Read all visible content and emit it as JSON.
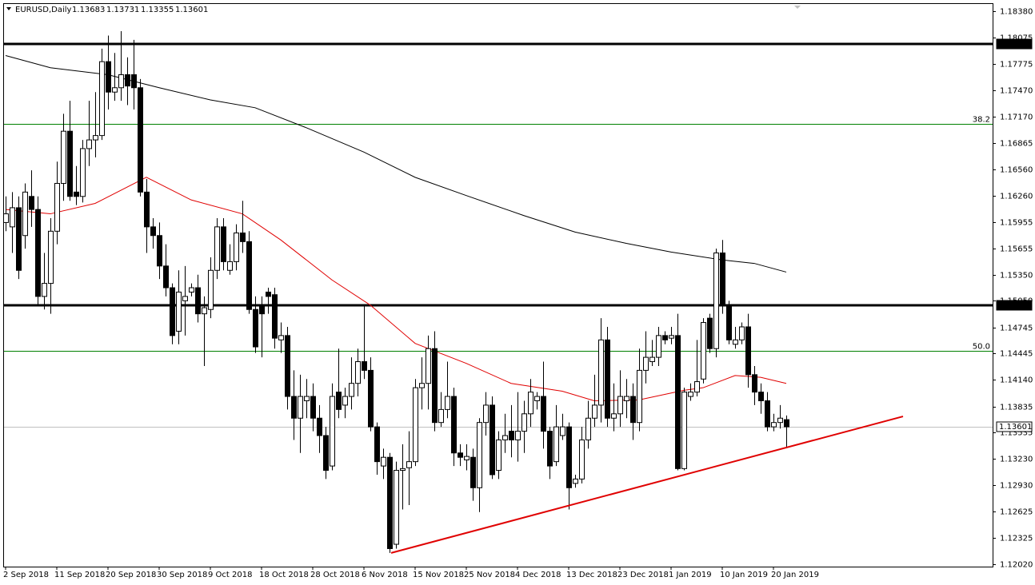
{
  "chart_data": {
    "type": "candlestick",
    "header": {
      "symbol": "EURUSD,Daily",
      "ohlc": [
        "1.13683",
        "1.13731",
        "1.13355",
        "1.13601"
      ]
    },
    "categories": [
      "2 Sep 2018",
      null,
      null,
      null,
      null,
      null,
      null,
      null,
      "11 Sep 2018",
      null,
      null,
      null,
      null,
      null,
      null,
      null,
      "20 Sep 2018",
      null,
      null,
      null,
      null,
      null,
      null,
      null,
      "30 Sep 2018",
      null,
      null,
      null,
      null,
      null,
      null,
      null,
      "9 Oct 2018",
      null,
      null,
      null,
      null,
      null,
      null,
      null,
      "18 Oct 2018",
      null,
      null,
      null,
      null,
      null,
      null,
      null,
      "28 Oct 2018",
      null,
      null,
      null,
      null,
      null,
      null,
      null,
      "6 Nov 2018",
      null,
      null,
      null,
      null,
      null,
      null,
      null,
      "15 Nov 2018",
      null,
      null,
      null,
      null,
      null,
      null,
      null,
      "25 Nov 2018",
      null,
      null,
      null,
      null,
      null,
      null,
      null,
      "4 Dec 2018",
      null,
      null,
      null,
      null,
      null,
      null,
      null,
      "13 Dec 2018",
      null,
      null,
      null,
      null,
      null,
      null,
      null,
      "23 Dec 2018",
      null,
      null,
      null,
      null,
      null,
      null,
      null,
      "1 Jan 2019",
      null,
      null,
      null,
      null,
      null,
      null,
      null,
      "10 Jan 2019",
      null,
      null,
      null,
      null,
      null,
      null,
      null,
      "20 Jan 2019",
      null,
      null
    ],
    "open": [
      1.1595,
      1.159,
      1.1612,
      1.158,
      1.1625,
      1.161,
      1.151,
      1.1525,
      1.1585,
      1.164,
      1.17,
      1.163,
      1.1625,
      1.168,
      1.169,
      1.1695,
      1.178,
      1.1745,
      1.175,
      1.1765,
      1.1765,
      1.175,
      1.163,
      1.159,
      1.158,
      1.1545,
      1.152,
      1.147,
      1.1505,
      1.1515,
      1.152,
      1.149,
      1.1495,
      1.154,
      1.159,
      1.154,
      1.155,
      1.1583,
      1.1573,
      1.1495,
      1.15,
      1.1515,
      1.1512,
      1.146,
      1.1465,
      1.1395,
      1.137,
      1.139,
      1.1395,
      1.137,
      1.135,
      1.1315,
      1.14,
      1.1385,
      1.1395,
      1.141,
      1.1435,
      1.1425,
      1.136,
      1.1315,
      1.1325,
      1.1225,
      1.131,
      1.1313,
      1.132,
      1.1405,
      1.141,
      1.145,
      1.1365,
      1.138,
      1.1395,
      1.133,
      1.1322,
      1.1325,
      1.129,
      1.1365,
      1.1385,
      1.131,
      1.1345,
      1.1355,
      1.1345,
      1.1355,
      1.1375,
      1.139,
      1.1395,
      1.1355,
      1.132,
      1.135,
      1.136,
      1.1295,
      1.13,
      1.1345,
      1.137,
      1.1385,
      1.146,
      1.137,
      1.1375,
      1.139,
      1.1395,
      1.1365,
      1.1425,
      1.1435,
      1.144,
      1.1465,
      1.1462,
      1.1465,
      1.1312,
      1.1395,
      1.14,
      1.1415,
      1.1485,
      1.145,
      1.156,
      1.15,
      1.1455,
      1.146,
      1.1475,
      1.142,
      1.14,
      1.139,
      1.136,
      1.1365,
      1.13683
    ],
    "high": [
      1.1625,
      1.163,
      1.1625,
      1.164,
      1.1655,
      1.1625,
      1.156,
      1.16,
      1.1665,
      1.172,
      1.1735,
      1.166,
      1.169,
      1.1735,
      1.1745,
      1.1795,
      1.181,
      1.179,
      1.1815,
      1.1785,
      1.1805,
      1.176,
      1.1645,
      1.16,
      1.1595,
      1.157,
      1.1525,
      1.154,
      1.1545,
      1.1525,
      1.1535,
      1.151,
      1.1555,
      1.16,
      1.16,
      1.157,
      1.1593,
      1.162,
      1.1585,
      1.151,
      1.151,
      1.152,
      1.152,
      1.148,
      1.1475,
      1.1425,
      1.142,
      1.1415,
      1.141,
      1.1385,
      1.136,
      1.141,
      1.145,
      1.1405,
      1.144,
      1.145,
      1.15,
      1.144,
      1.1365,
      1.1335,
      1.133,
      1.132,
      1.134,
      1.1355,
      1.1415,
      1.144,
      1.1465,
      1.147,
      1.14,
      1.1435,
      1.1405,
      1.134,
      1.134,
      1.1335,
      1.137,
      1.14,
      1.1395,
      1.1355,
      1.1375,
      1.1385,
      1.14,
      1.139,
      1.1415,
      1.14,
      1.1435,
      1.136,
      1.1385,
      1.1375,
      1.1365,
      1.1305,
      1.136,
      1.139,
      1.142,
      1.1485,
      1.1475,
      1.141,
      1.1425,
      1.1415,
      1.141,
      1.145,
      1.147,
      1.146,
      1.1475,
      1.147,
      1.1475,
      1.149,
      1.1405,
      1.141,
      1.146,
      1.1485,
      1.149,
      1.1565,
      1.1575,
      1.1505,
      1.1475,
      1.148,
      1.149,
      1.143,
      1.141,
      1.14,
      1.1375,
      1.1385,
      1.13731
    ],
    "low": [
      1.1585,
      1.156,
      1.153,
      1.1565,
      1.159,
      1.15,
      1.1495,
      1.149,
      1.157,
      1.162,
      1.162,
      1.1615,
      1.1618,
      1.166,
      1.167,
      1.169,
      1.1725,
      1.1735,
      1.1735,
      1.173,
      1.1725,
      1.1625,
      1.156,
      1.1565,
      1.153,
      1.151,
      1.1455,
      1.1455,
      1.1465,
      1.151,
      1.148,
      1.143,
      1.1485,
      1.153,
      1.154,
      1.1535,
      1.154,
      1.156,
      1.149,
      1.1445,
      1.144,
      1.149,
      1.145,
      1.1445,
      1.138,
      1.1345,
      1.133,
      1.137,
      1.1355,
      1.133,
      1.13,
      1.131,
      1.137,
      1.137,
      1.138,
      1.1395,
      1.1415,
      1.1355,
      1.1305,
      1.13,
      1.1215,
      1.122,
      1.1265,
      1.127,
      1.1315,
      1.138,
      1.138,
      1.1355,
      1.136,
      1.137,
      1.1315,
      1.1315,
      1.131,
      1.1275,
      1.1262,
      1.135,
      1.13,
      1.13,
      1.133,
      1.1325,
      1.132,
      1.133,
      1.136,
      1.138,
      1.1335,
      1.13,
      1.1315,
      1.1345,
      1.1265,
      1.129,
      1.1295,
      1.1335,
      1.136,
      1.1365,
      1.136,
      1.1355,
      1.136,
      1.137,
      1.1345,
      1.1355,
      1.141,
      1.143,
      1.143,
      1.1455,
      1.1455,
      1.131,
      1.131,
      1.139,
      1.1395,
      1.141,
      1.1445,
      1.144,
      1.149,
      1.1455,
      1.145,
      1.1455,
      1.1405,
      1.1385,
      1.1375,
      1.1355,
      1.1355,
      1.1358,
      1.13355
    ],
    "close": [
      1.1605,
      1.1612,
      1.154,
      1.163,
      1.161,
      1.151,
      1.1525,
      1.1585,
      1.164,
      1.17,
      1.1625,
      1.1625,
      1.168,
      1.169,
      1.1695,
      1.178,
      1.1745,
      1.175,
      1.1765,
      1.1752,
      1.175,
      1.163,
      1.159,
      1.158,
      1.1545,
      1.152,
      1.1465,
      1.1515,
      1.151,
      1.152,
      1.149,
      1.1497,
      1.154,
      1.159,
      1.155,
      1.155,
      1.1583,
      1.1573,
      1.1495,
      1.1452,
      1.149,
      1.151,
      1.1462,
      1.1465,
      1.1395,
      1.137,
      1.1395,
      1.1395,
      1.137,
      1.135,
      1.131,
      1.1395,
      1.138,
      1.1395,
      1.141,
      1.1435,
      1.1425,
      1.136,
      1.132,
      1.1325,
      1.122,
      1.131,
      1.1312,
      1.132,
      1.1405,
      1.141,
      1.145,
      1.1365,
      1.138,
      1.1395,
      1.133,
      1.1325,
      1.1326,
      1.129,
      1.1365,
      1.1385,
      1.1305,
      1.1345,
      1.135,
      1.1345,
      1.1355,
      1.1375,
      1.14,
      1.1395,
      1.1355,
      1.1315,
      1.136,
      1.136,
      1.129,
      1.13,
      1.1345,
      1.137,
      1.1385,
      1.146,
      1.137,
      1.1375,
      1.1395,
      1.1395,
      1.1365,
      1.1425,
      1.144,
      1.144,
      1.1465,
      1.146,
      1.1465,
      1.1312,
      1.14,
      1.14,
      1.1412,
      1.148,
      1.145,
      1.156,
      1.15,
      1.146,
      1.146,
      1.1475,
      1.142,
      1.14,
      1.139,
      1.136,
      1.1365,
      1.137,
      1.13601
    ],
    "bull_color": "#ffffff",
    "bear_color": "#000000",
    "indicators": [
      {
        "color": "#000000",
        "x": [
          0,
          7,
          16,
          24,
          32,
          39,
          47,
          56,
          64,
          72,
          81,
          89,
          97,
          104,
          112,
          117,
          122
        ],
        "values": [
          1.1787,
          1.1773,
          1.1765,
          1.175,
          1.1736,
          1.1727,
          1.1704,
          1.1676,
          1.1647,
          1.1626,
          1.1603,
          1.1584,
          1.1571,
          1.1561,
          1.1552,
          1.1548,
          1.1538
        ]
      },
      {
        "color": "#e00000",
        "x": [
          0,
          7,
          14,
          22,
          29,
          37,
          43,
          51,
          57,
          64,
          72,
          79,
          87,
          92,
          99,
          106,
          109,
          114,
          118,
          122
        ],
        "values": [
          1.161,
          1.1605,
          1.1617,
          1.1647,
          1.1621,
          1.1605,
          1.1575,
          1.1529,
          1.15,
          1.1456,
          1.1433,
          1.141,
          1.1401,
          1.139,
          1.1391,
          1.1402,
          1.1405,
          1.1419,
          1.1417,
          1.141
        ]
      }
    ],
    "trendline": {
      "color": "#e00000",
      "x": [
        60.25,
        140.25
      ],
      "values": [
        1.1215,
        1.1372
      ]
    },
    "levels": [
      {
        "value": 1.18,
        "label": "1.18000",
        "color": "#000000"
      },
      {
        "value": 1.15,
        "label": "1.15000",
        "color": "#000000"
      }
    ],
    "fib_levels": [
      {
        "value": 1.1708,
        "label": "38.2",
        "color": "#008000"
      },
      {
        "value": 1.1447,
        "label": "50.0",
        "color": "#008000"
      }
    ],
    "current_price": {
      "value": 1.13601,
      "label": "1.13601",
      "color": "#c0c0c0"
    },
    "ylim": [
      1.12002,
      1.18463
    ],
    "yticks": [
      {
        "value": 1.1838,
        "label": "1.18380"
      },
      {
        "value": 1.18075,
        "label": "1.18075"
      },
      {
        "value": 1.17775,
        "label": "1.17775"
      },
      {
        "value": 1.1747,
        "label": "1.17470"
      },
      {
        "value": 1.1717,
        "label": "1.17170"
      },
      {
        "value": 1.16865,
        "label": "1.16865"
      },
      {
        "value": 1.1656,
        "label": "1.16560"
      },
      {
        "value": 1.1626,
        "label": "1.16260"
      },
      {
        "value": 1.15955,
        "label": "1.15955"
      },
      {
        "value": 1.15655,
        "label": "1.15655"
      },
      {
        "value": 1.1535,
        "label": "1.15350"
      },
      {
        "value": 1.1505,
        "label": "1.15050"
      },
      {
        "value": 1.14745,
        "label": "1.14745"
      },
      {
        "value": 1.14445,
        "label": "1.14445"
      },
      {
        "value": 1.1414,
        "label": "1.14140"
      },
      {
        "value": 1.13835,
        "label": "1.13835"
      },
      {
        "value": 1.13535,
        "label": "1.13535"
      },
      {
        "value": 1.1323,
        "label": "1.13230"
      },
      {
        "value": 1.1293,
        "label": "1.12930"
      },
      {
        "value": 1.12625,
        "label": "1.12625"
      },
      {
        "value": 1.12325,
        "label": "1.12325"
      },
      {
        "value": 1.1202,
        "label": "1.12020"
      }
    ]
  }
}
